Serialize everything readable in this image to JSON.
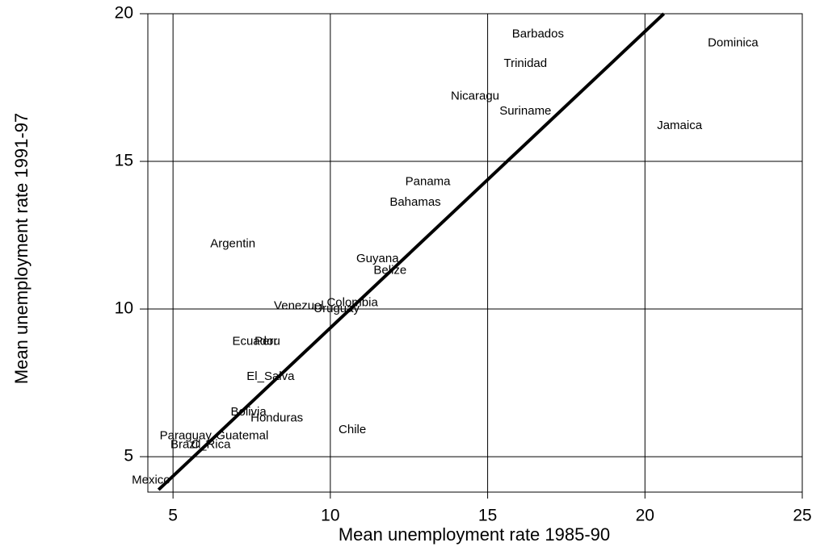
{
  "chart_data": {
    "type": "scatter",
    "x_label": "Mean unemployment rate 1985-90",
    "y_label": "Mean unemployment rate 1991-97",
    "point_labels": [
      "Barbados",
      "Trinidad",
      "Dominica",
      "Nicaragu",
      "Suriname",
      "Jamaica",
      "Panama",
      "Bahamas",
      "Argentin",
      "Guyana",
      "Belize",
      "Colombia",
      "Venezuel",
      "Uruguay",
      "Ecuador",
      "Peru",
      "El_Salva",
      "Bolivia",
      "Honduras",
      "Chile",
      "Paraguay",
      "Guatemal",
      "Brazil",
      "C_Rica",
      "Mexico"
    ],
    "x": [
      16.6,
      16.2,
      22.8,
      14.6,
      16.2,
      21.1,
      13.1,
      12.7,
      6.9,
      11.5,
      11.9,
      10.7,
      9.0,
      10.2,
      7.6,
      8.0,
      8.1,
      7.4,
      8.3,
      10.7,
      5.4,
      7.2,
      5.4,
      6.2,
      4.3
    ],
    "values": [
      19.3,
      18.3,
      19.0,
      17.2,
      16.7,
      16.2,
      14.3,
      13.6,
      12.2,
      11.7,
      11.3,
      10.2,
      10.1,
      10.0,
      8.9,
      8.9,
      7.7,
      6.5,
      6.3,
      5.9,
      5.7,
      5.7,
      5.4,
      5.4,
      4.2
    ],
    "fit": {
      "x": [
        4.54,
        20.6
      ],
      "values": [
        3.88,
        20
      ]
    },
    "xlim": [
      4.2,
      25
    ],
    "ylim": [
      3.8,
      20
    ],
    "xticks": [
      5,
      10,
      15,
      20,
      25
    ],
    "yticks": [
      5,
      10,
      15,
      20
    ],
    "grid": true
  }
}
